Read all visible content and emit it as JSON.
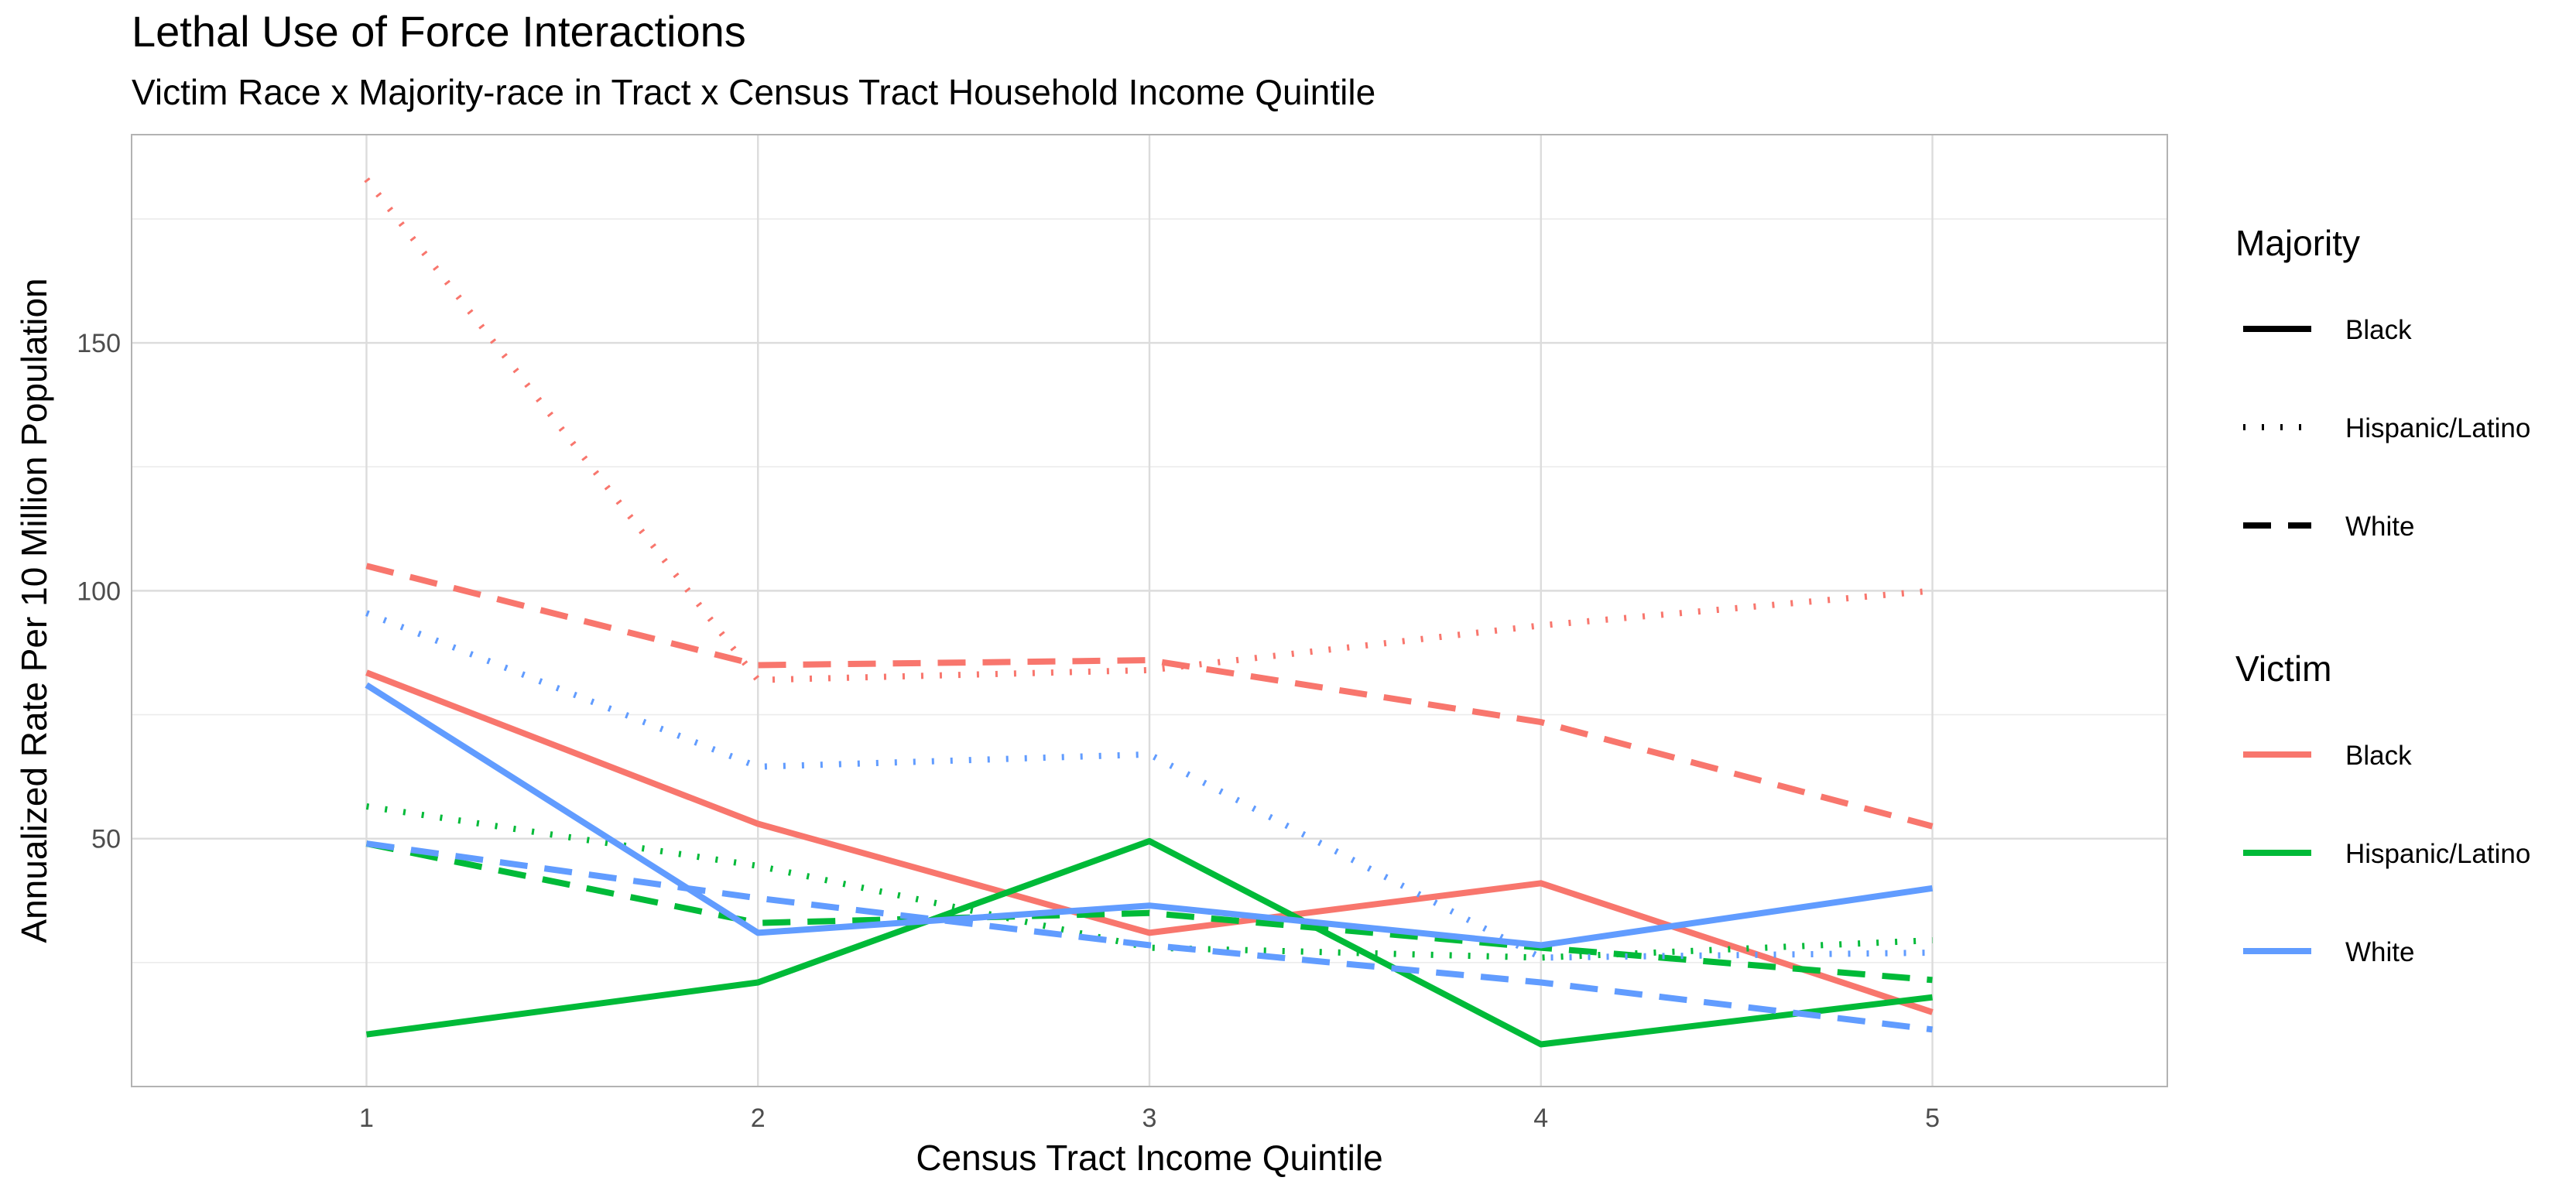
{
  "chart_data": {
    "type": "line",
    "title": "Lethal Use of Force Interactions",
    "subtitle": "Victim Race x Majority-race in Tract x Census Tract Household Income Quintile",
    "xlabel": "Census Tract Income Quintile",
    "ylabel": "Annualized Rate Per 10 Million Population",
    "x": [
      1,
      2,
      3,
      4,
      5
    ],
    "xlim": [
      0.4,
      5.6
    ],
    "ylim": [
      0,
      192
    ],
    "x_ticks": [
      "1",
      "2",
      "3",
      "4",
      "5"
    ],
    "y_ticks": [
      "50",
      "100",
      "150"
    ],
    "y_tick_values": [
      50,
      100,
      150
    ],
    "grid": true,
    "legend_position": "right",
    "legends": [
      {
        "title": "Majority",
        "entries": [
          {
            "label": "Black",
            "linetype": "solid"
          },
          {
            "label": "Hispanic/Latino",
            "linetype": "dotted"
          },
          {
            "label": "White",
            "linetype": "dashed"
          }
        ]
      },
      {
        "title": "Victim",
        "entries": [
          {
            "label": "Black",
            "color": "#F8766D"
          },
          {
            "label": "Hispanic/Latino",
            "color": "#00BA38"
          },
          {
            "label": "White",
            "color": "#619CFF"
          }
        ]
      }
    ],
    "series": [
      {
        "victim": "Black",
        "majority": "Black",
        "color": "#F8766D",
        "linetype": "solid",
        "values": [
          83.5,
          53,
          31,
          41,
          15
        ]
      },
      {
        "victim": "Black",
        "majority": "Hispanic/Latino",
        "color": "#F8766D",
        "linetype": "dotted",
        "values": [
          183,
          82,
          84,
          93,
          100
        ]
      },
      {
        "victim": "Black",
        "majority": "White",
        "color": "#F8766D",
        "linetype": "dashed",
        "values": [
          105,
          85,
          86,
          73.5,
          52.5
        ]
      },
      {
        "victim": "Hispanic/Latino",
        "majority": "Black",
        "color": "#00BA38",
        "linetype": "solid",
        "values": [
          10.5,
          21,
          49.5,
          8.5,
          18
        ]
      },
      {
        "victim": "Hispanic/Latino",
        "majority": "Hispanic/Latino",
        "color": "#00BA38",
        "linetype": "dotted",
        "values": [
          56.5,
          44.5,
          28,
          26,
          29.5
        ]
      },
      {
        "victim": "Hispanic/Latino",
        "majority": "White",
        "color": "#00BA38",
        "linetype": "dashed",
        "values": [
          49,
          33,
          35,
          28,
          21.5
        ]
      },
      {
        "victim": "White",
        "majority": "Black",
        "color": "#619CFF",
        "linetype": "solid",
        "values": [
          81,
          31,
          36.5,
          28.5,
          40
        ]
      },
      {
        "victim": "White",
        "majority": "Hispanic/Latino",
        "color": "#619CFF",
        "linetype": "dotted",
        "values": [
          95.5,
          64.5,
          67,
          26,
          27
        ]
      },
      {
        "victim": "White",
        "majority": "White",
        "color": "#619CFF",
        "linetype": "dashed",
        "values": [
          49,
          38,
          28.5,
          21,
          11.5
        ]
      }
    ]
  }
}
